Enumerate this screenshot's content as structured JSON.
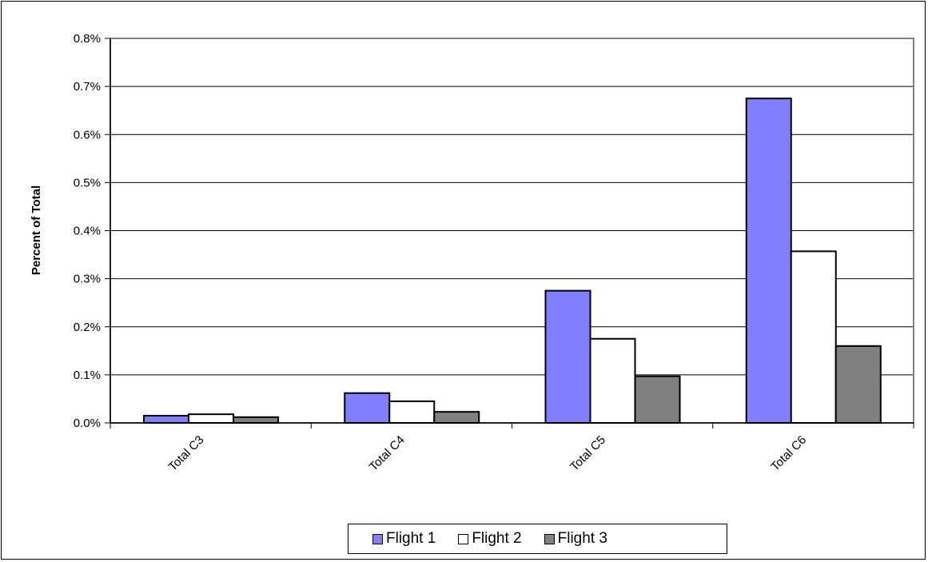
{
  "chart_data": {
    "type": "bar",
    "ylabel": "Percent of Total",
    "ylim": [
      0,
      0.8
    ],
    "yticks": [
      "0.0%",
      "0.1%",
      "0.2%",
      "0.3%",
      "0.4%",
      "0.5%",
      "0.6%",
      "0.7%",
      "0.8%"
    ],
    "categories": [
      "Total C3",
      "Total C4",
      "Total C5",
      "Total C6"
    ],
    "series": [
      {
        "name": "Flight 1",
        "color": "#8080ff",
        "values": [
          0.015,
          0.062,
          0.275,
          0.675
        ]
      },
      {
        "name": "Flight 2",
        "color": "#ffffff",
        "values": [
          0.018,
          0.045,
          0.175,
          0.357
        ]
      },
      {
        "name": "Flight 3",
        "color": "#808080",
        "values": [
          0.012,
          0.023,
          0.097,
          0.16
        ]
      }
    ],
    "grid": true,
    "legend_position": "bottom"
  }
}
